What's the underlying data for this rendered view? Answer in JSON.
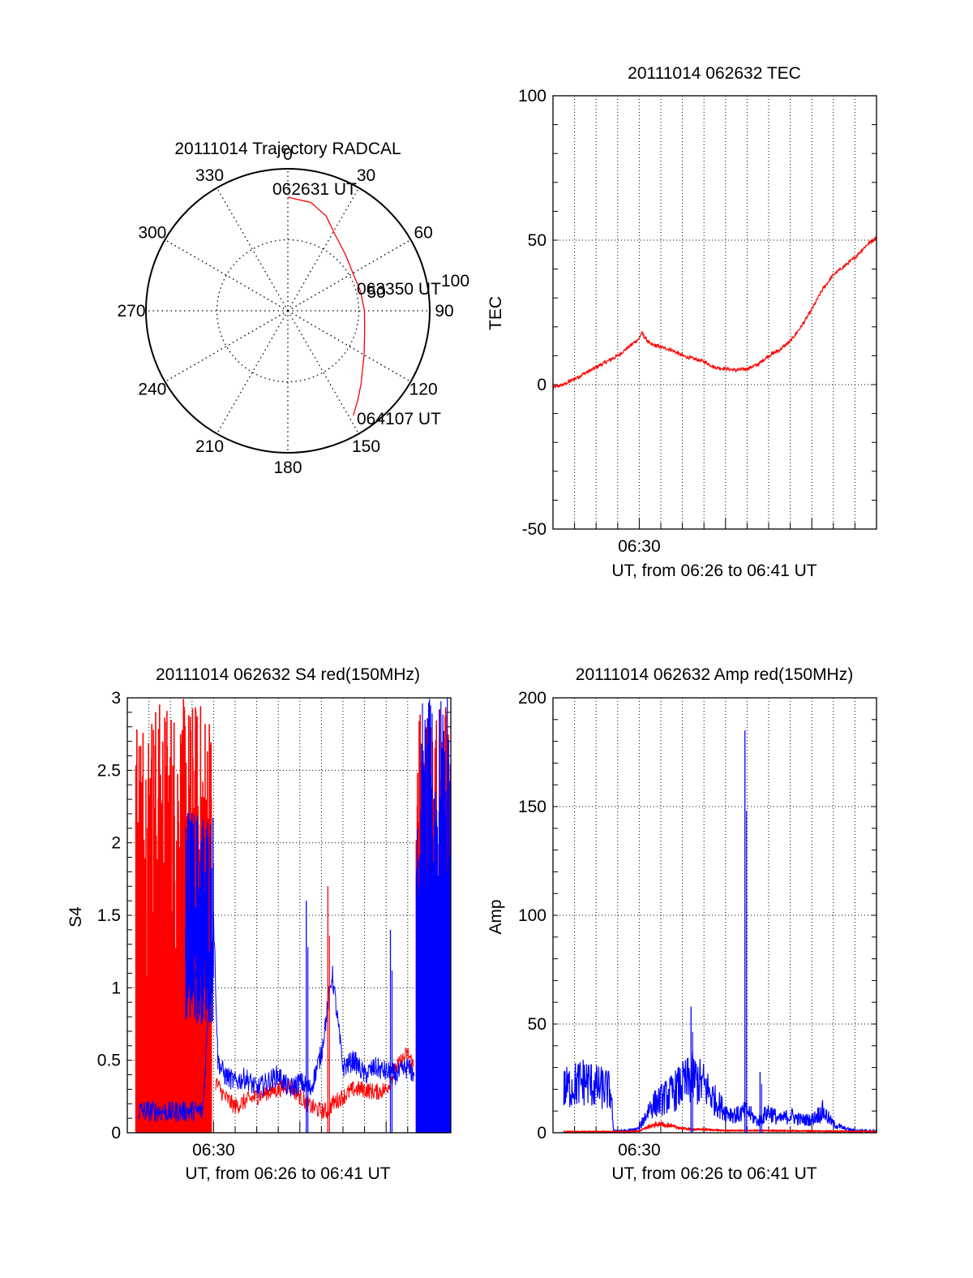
{
  "chart_data": [
    {
      "type": "polar",
      "title": "20111014 Trajectory RADCAL",
      "angle_ticks": [
        "0",
        "30",
        "60",
        "90",
        "120",
        "150",
        "180",
        "210",
        "240",
        "270",
        "300",
        "330"
      ],
      "radial_ticks": [
        "50",
        "100"
      ],
      "rlim": [
        0,
        100
      ],
      "grid": true,
      "trajectory": {
        "color": "#ff0000",
        "points": [
          [
            0,
            80
          ],
          [
            12,
            78
          ],
          [
            22,
            72
          ],
          [
            32,
            63
          ],
          [
            45,
            57
          ],
          [
            60,
            53
          ],
          [
            75,
            53
          ],
          [
            90,
            54
          ],
          [
            105,
            56
          ],
          [
            120,
            62
          ],
          [
            135,
            73
          ],
          [
            142,
            80
          ],
          [
            148,
            87
          ]
        ]
      },
      "annotations": [
        {
          "text": "062631 UT",
          "anchor": "start"
        },
        {
          "text": "063350 UT",
          "anchor": "mid"
        },
        {
          "text": "064107 UT",
          "anchor": "end"
        }
      ]
    },
    {
      "type": "line",
      "title": "20111014 062632 TEC",
      "xlabel": "UT, from 06:26 to 06:41 UT",
      "ylabel": "TEC",
      "xlim": [
        0,
        15
      ],
      "ylim": [
        -50,
        100
      ],
      "yticks": [
        -50,
        0,
        50,
        100
      ],
      "xtick_labels": [
        {
          "x": 4,
          "label": "06:30"
        }
      ],
      "grid": true,
      "series": [
        {
          "color": "#ff0000",
          "x": [
            0,
            0.5,
            1.0,
            1.5,
            2.0,
            2.5,
            3.0,
            3.5,
            4.0,
            4.1,
            4.5,
            5.0,
            5.5,
            6.0,
            6.5,
            7.0,
            7.5,
            8.0,
            8.5,
            9.0,
            9.5,
            10.0,
            10.5,
            11.0,
            11.5,
            12.0,
            12.5,
            13.0,
            13.5,
            14.0,
            14.5,
            15.0
          ],
          "values": [
            -1,
            0,
            2,
            4,
            6,
            8,
            10,
            13,
            16,
            18,
            14,
            13,
            12,
            10,
            9,
            8,
            6,
            5.5,
            5,
            5.5,
            7,
            10,
            12,
            15,
            20,
            26,
            33,
            38,
            41,
            44,
            48,
            51
          ]
        }
      ]
    },
    {
      "type": "line",
      "title": "20111014 062632 S4 red(150MHz)",
      "xlabel": "UT, from 06:26 to 06:41 UT",
      "ylabel": "S4",
      "xlim": [
        0,
        15
      ],
      "ylim": [
        0,
        3
      ],
      "yticks": [
        0,
        0.5,
        1,
        1.5,
        2,
        2.5,
        3
      ],
      "ytick_labels": [
        "0",
        "0.5",
        "1",
        "1.5",
        "2",
        "2.5",
        "3"
      ],
      "xtick_labels": [
        {
          "x": 4,
          "label": "06:30"
        }
      ],
      "grid": true,
      "series": [
        {
          "color": "#ff0000",
          "x": [
            4.1,
            4.5,
            5.0,
            5.5,
            6.0,
            6.5,
            7.0,
            7.5,
            8.0,
            8.5,
            9.0,
            9.3,
            9.5,
            10.0,
            10.5,
            11.0,
            11.5,
            12.0,
            12.5,
            13.0,
            13.3
          ],
          "values": [
            0.35,
            0.25,
            0.18,
            0.22,
            0.25,
            0.28,
            0.3,
            0.33,
            0.25,
            0.18,
            0.15,
            0.15,
            0.2,
            0.25,
            0.3,
            0.3,
            0.28,
            0.3,
            0.45,
            0.55,
            0.45
          ]
        },
        {
          "color": "#0000ff",
          "x": [
            0.5,
            1.0,
            1.5,
            2.0,
            2.5,
            3.0,
            3.5,
            4.0,
            4.2,
            4.5,
            5.0,
            5.5,
            6.0,
            6.5,
            7.0,
            7.5,
            8.0,
            8.5,
            9.0,
            9.5,
            10.0,
            10.5,
            11.0,
            11.5,
            12.0,
            12.5,
            13.0,
            13.3
          ],
          "values": [
            0.15,
            0.15,
            0.15,
            0.14,
            0.15,
            0.15,
            0.15,
            1.5,
            0.5,
            0.4,
            0.35,
            0.38,
            0.3,
            0.35,
            0.4,
            0.3,
            0.35,
            0.3,
            0.55,
            1.1,
            0.45,
            0.5,
            0.4,
            0.45,
            0.42,
            0.4,
            0.45,
            0.4
          ]
        }
      ],
      "bands": [
        {
          "color": "#ff0000",
          "from": 0.4,
          "to": 3.9
        },
        {
          "color": "#ff0000",
          "from": 13.4,
          "to": 15.0
        },
        {
          "color": "#0000ff",
          "from": 2.7,
          "to": 4.0
        },
        {
          "color": "#0000ff",
          "from": 13.4,
          "to": 15.0
        }
      ],
      "spikes": [
        {
          "color": "#0000ff",
          "x": 8.3,
          "value": 1.6
        },
        {
          "color": "#ff0000",
          "x": 9.3,
          "value": 1.7
        },
        {
          "color": "#0000ff",
          "x": 12.2,
          "value": 1.4
        }
      ]
    },
    {
      "type": "line",
      "title": "20111014 062632 Amp red(150MHz)",
      "xlabel": "UT, from 06:26 to 06:41 UT",
      "ylabel": "Amp",
      "xlim": [
        0,
        15
      ],
      "ylim": [
        0,
        200
      ],
      "yticks": [
        0,
        50,
        100,
        150,
        200
      ],
      "xtick_labels": [
        {
          "x": 4,
          "label": "06:30"
        }
      ],
      "grid": true,
      "series": [
        {
          "color": "#0000ff",
          "x": [
            0.5,
            1.0,
            1.5,
            2.0,
            2.5,
            2.7,
            2.8,
            3.5,
            4.0,
            4.5,
            5.0,
            5.5,
            6.0,
            6.5,
            7.0,
            7.5,
            8.0,
            8.5,
            9.0,
            9.5,
            10.0,
            10.5,
            11.0,
            11.5,
            12.0,
            12.5,
            13.0,
            13.5,
            14.0,
            15.0
          ],
          "values": [
            20,
            22,
            24,
            21,
            20,
            18,
            1,
            1,
            2,
            12,
            15,
            18,
            22,
            25,
            22,
            15,
            10,
            8,
            10,
            5,
            10,
            6,
            8,
            6,
            6,
            10,
            4,
            2,
            1,
            1
          ]
        },
        {
          "color": "#ff0000",
          "x": [
            0.5,
            3.5,
            4.0,
            4.5,
            5.0,
            5.5,
            6.0,
            6.5,
            7.0,
            8.0,
            10.0,
            12.0,
            15.0
          ],
          "values": [
            0.5,
            0.5,
            0.8,
            3,
            4,
            3,
            2,
            1.5,
            1.5,
            1,
            1,
            0.8,
            0.5
          ]
        }
      ],
      "spikes": [
        {
          "color": "#0000ff",
          "x": 6.4,
          "value": 58
        },
        {
          "color": "#0000ff",
          "x": 8.9,
          "value": 185
        },
        {
          "color": "#0000ff",
          "x": 9.6,
          "value": 28
        }
      ]
    }
  ]
}
